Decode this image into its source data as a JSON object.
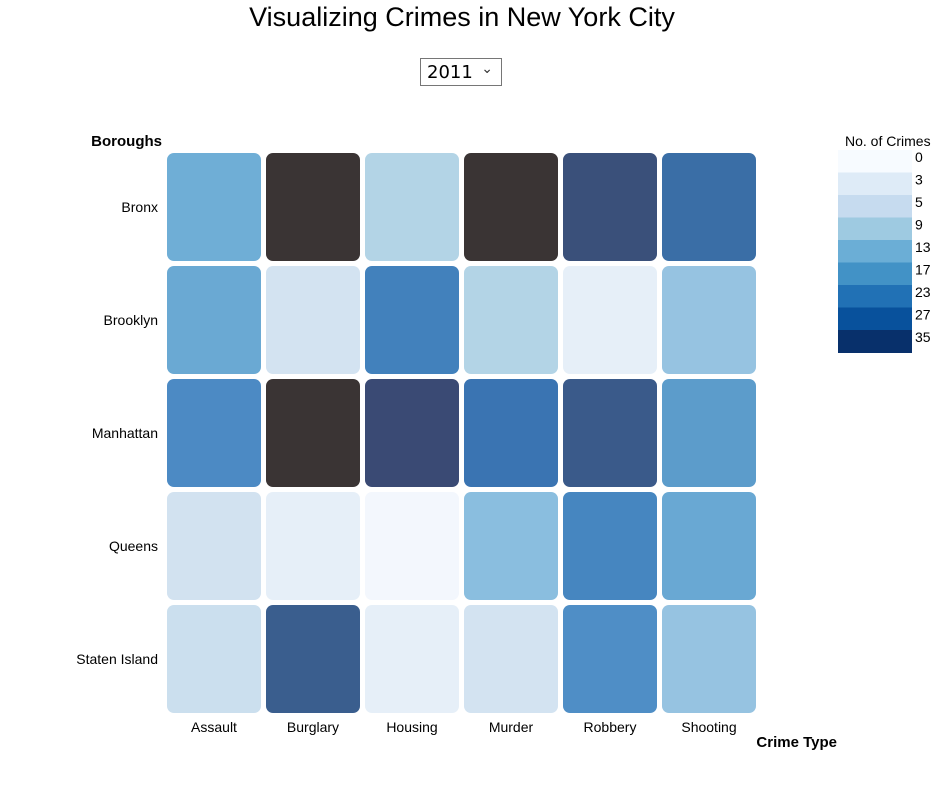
{
  "title": "Visualizing Crimes in New York City",
  "year_select": {
    "value": "2011",
    "icon": "chevron-down-icon"
  },
  "chart_data": {
    "type": "heatmap",
    "title": "Visualizing Crimes in New York City",
    "ylabel": "Boroughs",
    "xlabel": "Crime Type",
    "rows": [
      "Bronx",
      "Brooklyn",
      "Manhattan",
      "Queens",
      "Staten Island"
    ],
    "columns": [
      "Assault",
      "Burglary",
      "Housing",
      "Murder",
      "Robbery",
      "Shooting"
    ],
    "colors": [
      [
        "#6faed6",
        "#3a3434",
        "#b3d4e6",
        "#3a3434",
        "#3a507a",
        "#3a6ea6"
      ],
      [
        "#6aa9d3",
        "#d3e3f1",
        "#4281bc",
        "#b3d4e6",
        "#e6eff8",
        "#96c3e1"
      ],
      [
        "#4c8ac4",
        "#3a3434",
        "#3a4a74",
        "#3a74b2",
        "#3a5a8a",
        "#5c9ccb"
      ],
      [
        "#d2e2f0",
        "#e6eff8",
        "#f3f7fd",
        "#8abedf",
        "#4686c0",
        "#69a8d3"
      ],
      [
        "#cbdfee",
        "#3a5e8e",
        "#e6eff8",
        "#d3e3f1",
        "#4f8ec6",
        "#96c3e1"
      ]
    ],
    "legend": {
      "title": "No. of Crimes",
      "thresholds": [
        "0",
        "3",
        "5",
        "9",
        "13",
        "17",
        "23",
        "27",
        "35"
      ],
      "colors": [
        "#f7fbff",
        "#deebf7",
        "#c6dbef",
        "#9ecae1",
        "#6baed6",
        "#4292c6",
        "#2171b5",
        "#08519c",
        "#08306b"
      ],
      "placement": "right"
    }
  }
}
